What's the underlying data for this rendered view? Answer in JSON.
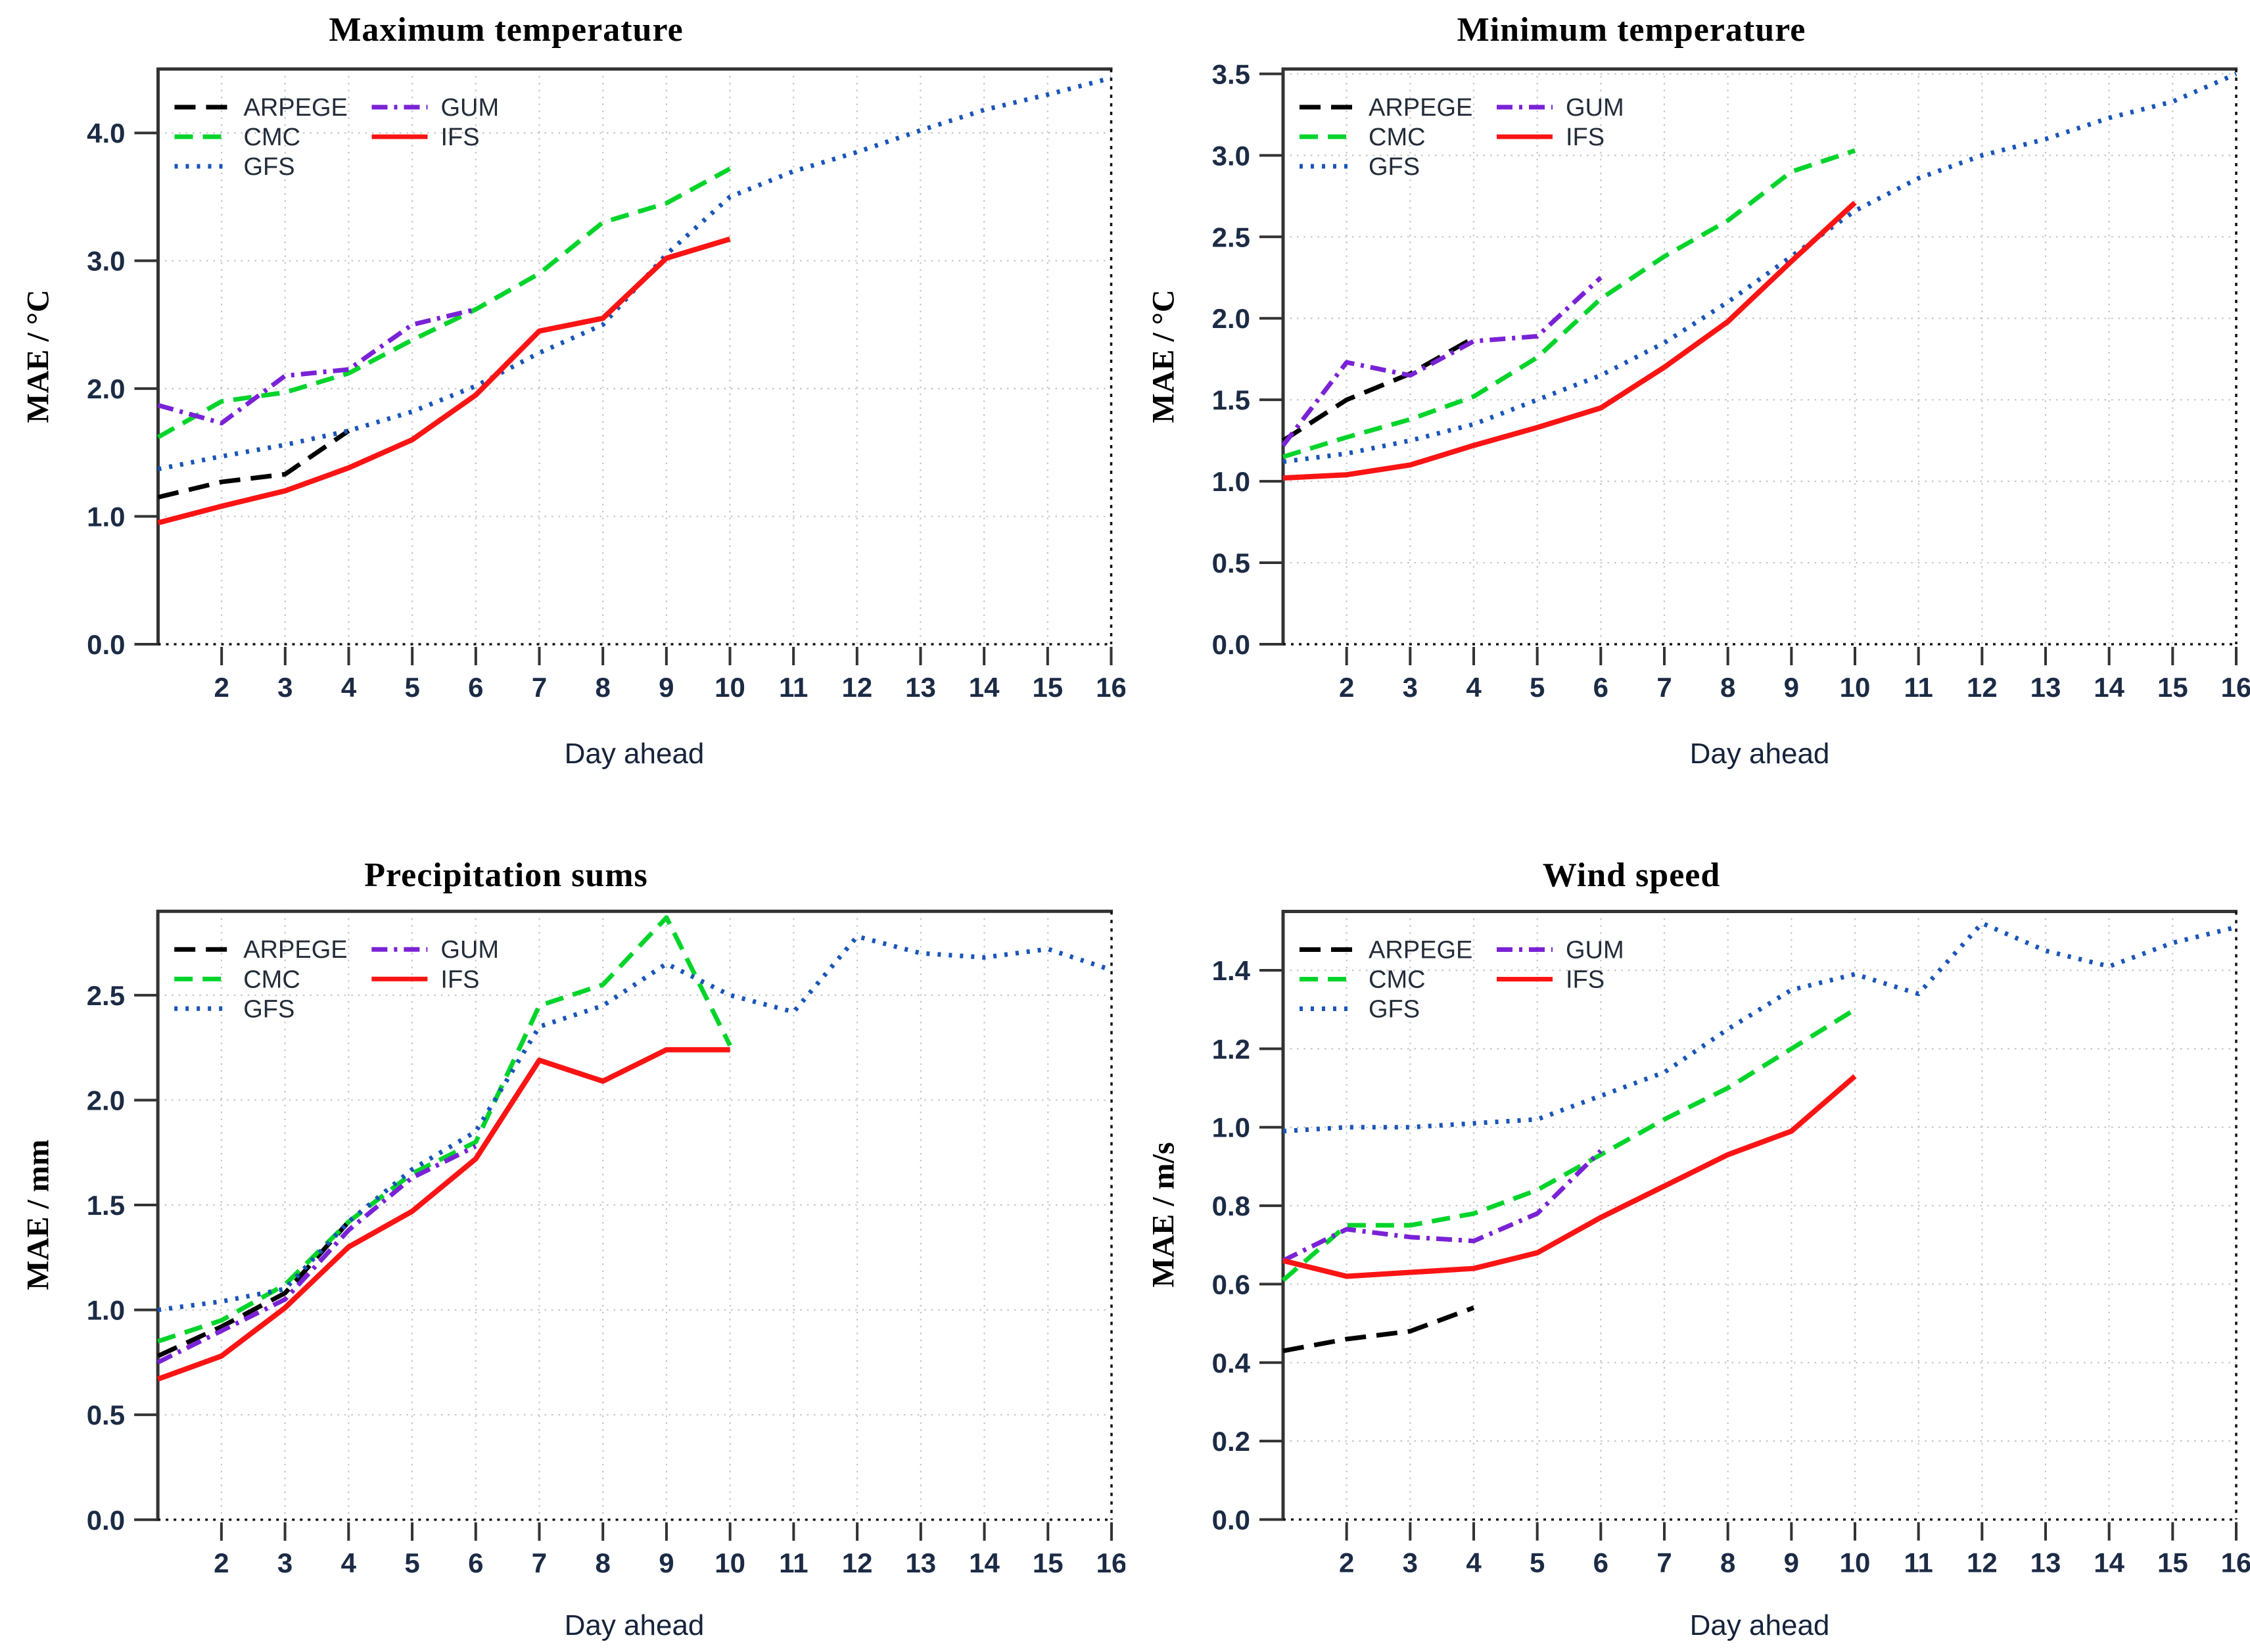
{
  "style": {
    "background": "#ffffff",
    "grid_color": "#c6c6c6",
    "axis_color": "#333333",
    "tick_label_color": "#1c2b45",
    "series_colors": {
      "ARPEGE": "#000000",
      "CMC": "#00d42b",
      "GFS": "#1a55b8",
      "GUM": "#7a22d6",
      "IFS": "#fa1414"
    }
  },
  "chart_data": [
    {
      "type": "line",
      "title": "Maximum temperature",
      "xlabel": "Day ahead",
      "ylabel": "MAE / °C",
      "xlim": [
        1,
        16
      ],
      "ylim": [
        0,
        4.5
      ],
      "x_first": 1,
      "x_step": 1,
      "grid": true,
      "legend_position": "top-left",
      "xticks": [
        2,
        3,
        4,
        5,
        6,
        7,
        8,
        9,
        10,
        11,
        12,
        13,
        14,
        15,
        16
      ],
      "ytick_values": [
        0,
        1,
        2,
        3,
        4
      ],
      "ytick_labels": [
        "0.0",
        "1.0",
        "2.0",
        "3.0",
        "4.0"
      ],
      "legend_columns": [
        [
          "ARPEGE",
          "CMC",
          "GFS"
        ],
        [
          "GUM",
          "IFS"
        ]
      ],
      "series": [
        {
          "name": "ARPEGE",
          "color": "#000000",
          "dash": "long-dash",
          "values": [
            1.15,
            1.27,
            1.33,
            1.67
          ]
        },
        {
          "name": "CMC",
          "color": "#00d42b",
          "dash": "dash",
          "values": [
            1.62,
            1.9,
            1.97,
            2.12,
            2.38,
            2.62,
            2.9,
            3.3,
            3.45,
            3.72
          ]
        },
        {
          "name": "GFS",
          "color": "#1a55b8",
          "dash": "dotted",
          "values": [
            1.37,
            1.47,
            1.56,
            1.67,
            1.82,
            2.02,
            2.28,
            2.5,
            3.05,
            3.5,
            3.7,
            3.85,
            4.02,
            4.18,
            4.3,
            4.43
          ]
        },
        {
          "name": "GUM",
          "color": "#7a22d6",
          "dash": "dash-dot",
          "values": [
            1.87,
            1.73,
            2.1,
            2.15,
            2.5,
            2.62
          ]
        },
        {
          "name": "IFS",
          "color": "#fa1414",
          "dash": "solid",
          "values": [
            0.95,
            1.08,
            1.2,
            1.38,
            1.6,
            1.95,
            2.45,
            2.55,
            3.02,
            3.17
          ]
        }
      ]
    },
    {
      "type": "line",
      "title": "Minimum temperature",
      "xlabel": "Day ahead",
      "ylabel": "MAE / °C",
      "xlim": [
        1,
        16
      ],
      "ylim": [
        0,
        3.53
      ],
      "x_first": 1,
      "x_step": 1,
      "grid": true,
      "legend_position": "top-left",
      "xticks": [
        2,
        3,
        4,
        5,
        6,
        7,
        8,
        9,
        10,
        11,
        12,
        13,
        14,
        15,
        16
      ],
      "ytick_values": [
        0,
        0.5,
        1,
        1.5,
        2,
        2.5,
        3,
        3.5
      ],
      "ytick_labels": [
        "0.0",
        "0.5",
        "1.0",
        "1.5",
        "2.0",
        "2.5",
        "3.0",
        "3.5"
      ],
      "legend_columns": [
        [
          "ARPEGE",
          "CMC",
          "GFS"
        ],
        [
          "GUM",
          "IFS"
        ]
      ],
      "series": [
        {
          "name": "ARPEGE",
          "color": "#000000",
          "dash": "long-dash",
          "values": [
            1.25,
            1.5,
            1.66,
            1.88
          ]
        },
        {
          "name": "CMC",
          "color": "#00d42b",
          "dash": "dash",
          "values": [
            1.15,
            1.27,
            1.38,
            1.52,
            1.76,
            2.12,
            2.38,
            2.6,
            2.9,
            3.03
          ]
        },
        {
          "name": "GFS",
          "color": "#1a55b8",
          "dash": "dotted",
          "values": [
            1.12,
            1.17,
            1.25,
            1.35,
            1.5,
            1.65,
            1.85,
            2.1,
            2.38,
            2.66,
            2.86,
            3.0,
            3.1,
            3.23,
            3.33,
            3.5
          ]
        },
        {
          "name": "GUM",
          "color": "#7a22d6",
          "dash": "dash-dot",
          "values": [
            1.22,
            1.73,
            1.65,
            1.86,
            1.89,
            2.25
          ]
        },
        {
          "name": "IFS",
          "color": "#fa1414",
          "dash": "solid",
          "values": [
            1.02,
            1.04,
            1.1,
            1.22,
            1.33,
            1.45,
            1.7,
            1.98,
            2.35,
            2.71
          ]
        }
      ]
    },
    {
      "type": "line",
      "title": "Precipitation sums",
      "xlabel": "Day ahead",
      "ylabel": "MAE / mm",
      "xlim": [
        1,
        16
      ],
      "ylim": [
        0,
        2.9
      ],
      "x_first": 1,
      "x_step": 1,
      "grid": true,
      "legend_position": "top-left",
      "xticks": [
        2,
        3,
        4,
        5,
        6,
        7,
        8,
        9,
        10,
        11,
        12,
        13,
        14,
        15,
        16
      ],
      "ytick_values": [
        0,
        0.5,
        1,
        1.5,
        2,
        2.5
      ],
      "ytick_labels": [
        "0.0",
        "0.5",
        "1.0",
        "1.5",
        "2.0",
        "2.5"
      ],
      "legend_columns": [
        [
          "ARPEGE",
          "CMC",
          "GFS"
        ],
        [
          "GUM",
          "IFS"
        ]
      ],
      "series": [
        {
          "name": "ARPEGE",
          "color": "#000000",
          "dash": "long-dash",
          "values": [
            0.78,
            0.92,
            1.08,
            1.42
          ]
        },
        {
          "name": "CMC",
          "color": "#00d42b",
          "dash": "dash",
          "values": [
            0.85,
            0.95,
            1.12,
            1.42,
            1.65,
            1.8,
            2.45,
            2.55,
            2.87,
            2.26
          ]
        },
        {
          "name": "GFS",
          "color": "#1a55b8",
          "dash": "dotted",
          "values": [
            1.0,
            1.04,
            1.1,
            1.42,
            1.67,
            1.85,
            2.35,
            2.45,
            2.65,
            2.5,
            2.42,
            2.78,
            2.7,
            2.68,
            2.72,
            2.62
          ]
        },
        {
          "name": "GUM",
          "color": "#7a22d6",
          "dash": "dash-dot",
          "values": [
            0.75,
            0.9,
            1.05,
            1.38,
            1.63,
            1.78
          ]
        },
        {
          "name": "IFS",
          "color": "#fa1414",
          "dash": "solid",
          "values": [
            0.67,
            0.78,
            1.01,
            1.3,
            1.47,
            1.72,
            2.19,
            2.09,
            2.24,
            2.24
          ]
        }
      ]
    },
    {
      "type": "line",
      "title": "Wind speed",
      "xlabel": "Day ahead",
      "ylabel": "MAE / m/s",
      "xlim": [
        1,
        16
      ],
      "ylim": [
        0,
        1.55
      ],
      "x_first": 1,
      "x_step": 1,
      "grid": true,
      "legend_position": "top-left",
      "xticks": [
        2,
        3,
        4,
        5,
        6,
        7,
        8,
        9,
        10,
        11,
        12,
        13,
        14,
        15,
        16
      ],
      "ytick_values": [
        0,
        0.2,
        0.4,
        0.6,
        0.8,
        1,
        1.2,
        1.4
      ],
      "ytick_labels": [
        "0.0",
        "0.2",
        "0.4",
        "0.6",
        "0.8",
        "1.0",
        "1.2",
        "1.4"
      ],
      "legend_columns": [
        [
          "ARPEGE",
          "CMC",
          "GFS"
        ],
        [
          "GUM",
          "IFS"
        ]
      ],
      "series": [
        {
          "name": "ARPEGE",
          "color": "#000000",
          "dash": "long-dash",
          "values": [
            0.43,
            0.46,
            0.48,
            0.54
          ]
        },
        {
          "name": "CMC",
          "color": "#00d42b",
          "dash": "dash",
          "values": [
            0.61,
            0.75,
            0.75,
            0.78,
            0.84,
            0.93,
            1.02,
            1.1,
            1.2,
            1.3
          ]
        },
        {
          "name": "GFS",
          "color": "#1a55b8",
          "dash": "dotted",
          "values": [
            0.99,
            1.0,
            1.0,
            1.01,
            1.02,
            1.08,
            1.14,
            1.25,
            1.35,
            1.39,
            1.34,
            1.52,
            1.45,
            1.41,
            1.47,
            1.51
          ]
        },
        {
          "name": "GUM",
          "color": "#7a22d6",
          "dash": "dash-dot",
          "values": [
            0.66,
            0.74,
            0.72,
            0.71,
            0.78,
            0.94
          ]
        },
        {
          "name": "IFS",
          "color": "#fa1414",
          "dash": "solid",
          "values": [
            0.66,
            0.62,
            0.63,
            0.64,
            0.68,
            0.77,
            0.85,
            0.93,
            0.99,
            1.13
          ]
        }
      ]
    }
  ]
}
